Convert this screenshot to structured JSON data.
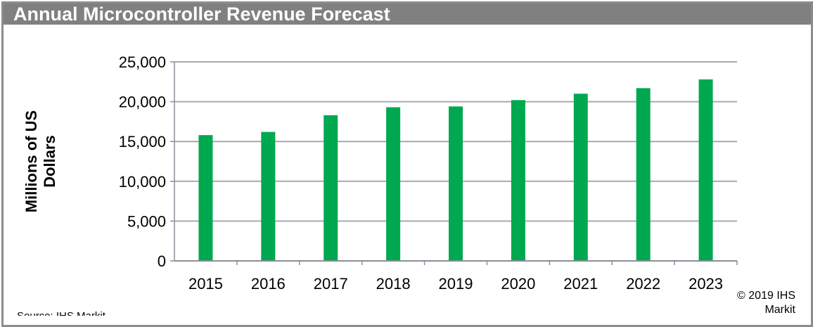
{
  "chart_data": {
    "type": "bar",
    "title": "Annual Microcontroller Revenue Forecast",
    "ylabel": "Millions of US Dollars",
    "ylabel_lines": [
      "Millions of US",
      "Dollars"
    ],
    "xlabel": "",
    "categories": [
      "2015",
      "2016",
      "2017",
      "2018",
      "2019",
      "2020",
      "2021",
      "2022",
      "2023"
    ],
    "values": [
      15800,
      16200,
      18300,
      19300,
      19400,
      20200,
      21000,
      21700,
      22800
    ],
    "ylim": [
      0,
      25000
    ],
    "yticks": [
      0,
      5000,
      10000,
      15000,
      20000,
      25000
    ],
    "ytick_labels": [
      "0",
      "5,000",
      "10,000",
      "15,000",
      "20,000",
      "25,000"
    ],
    "grid": true,
    "bar_color": "#00a84f",
    "title_bar_color": "#808080"
  },
  "footer": {
    "copyright_line1": "© 2019 IHS",
    "copyright_line2": "Markit",
    "source": "Source: IHS Markit"
  }
}
